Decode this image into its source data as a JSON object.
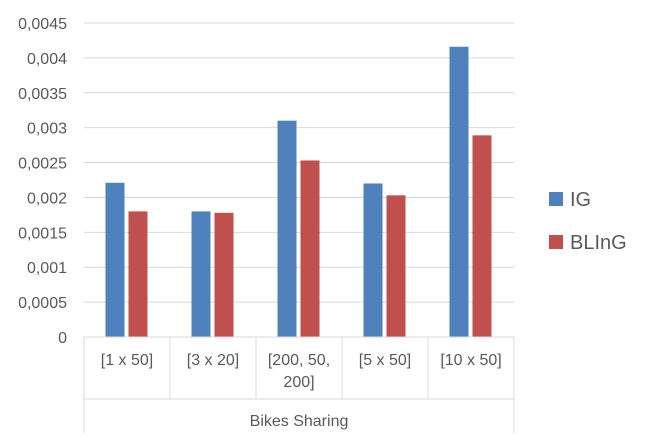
{
  "chart_data": {
    "type": "bar",
    "group_label": "Bikes Sharing",
    "categories": [
      [
        "[1 x 50]"
      ],
      [
        "[3 x 20]"
      ],
      [
        "[200, 50,",
        "200]"
      ],
      [
        "[5 x 50]"
      ],
      [
        "[10 x 50]"
      ]
    ],
    "series": [
      {
        "name": "IG",
        "color": "#4F81BD",
        "values": [
          0.00221,
          0.0018,
          0.0031,
          0.0022,
          0.00416
        ]
      },
      {
        "name": "BLInG",
        "color": "#C0504D",
        "values": [
          0.0018,
          0.00178,
          0.00253,
          0.00203,
          0.00289
        ]
      }
    ],
    "y_ticks": [
      "0",
      "0,0005",
      "0,001",
      "0,0015",
      "0,002",
      "0,0025",
      "0,003",
      "0,0035",
      "0,004",
      "0,0045"
    ],
    "ylim": [
      0,
      0.0045
    ],
    "grid": true,
    "legend_position": "right"
  }
}
